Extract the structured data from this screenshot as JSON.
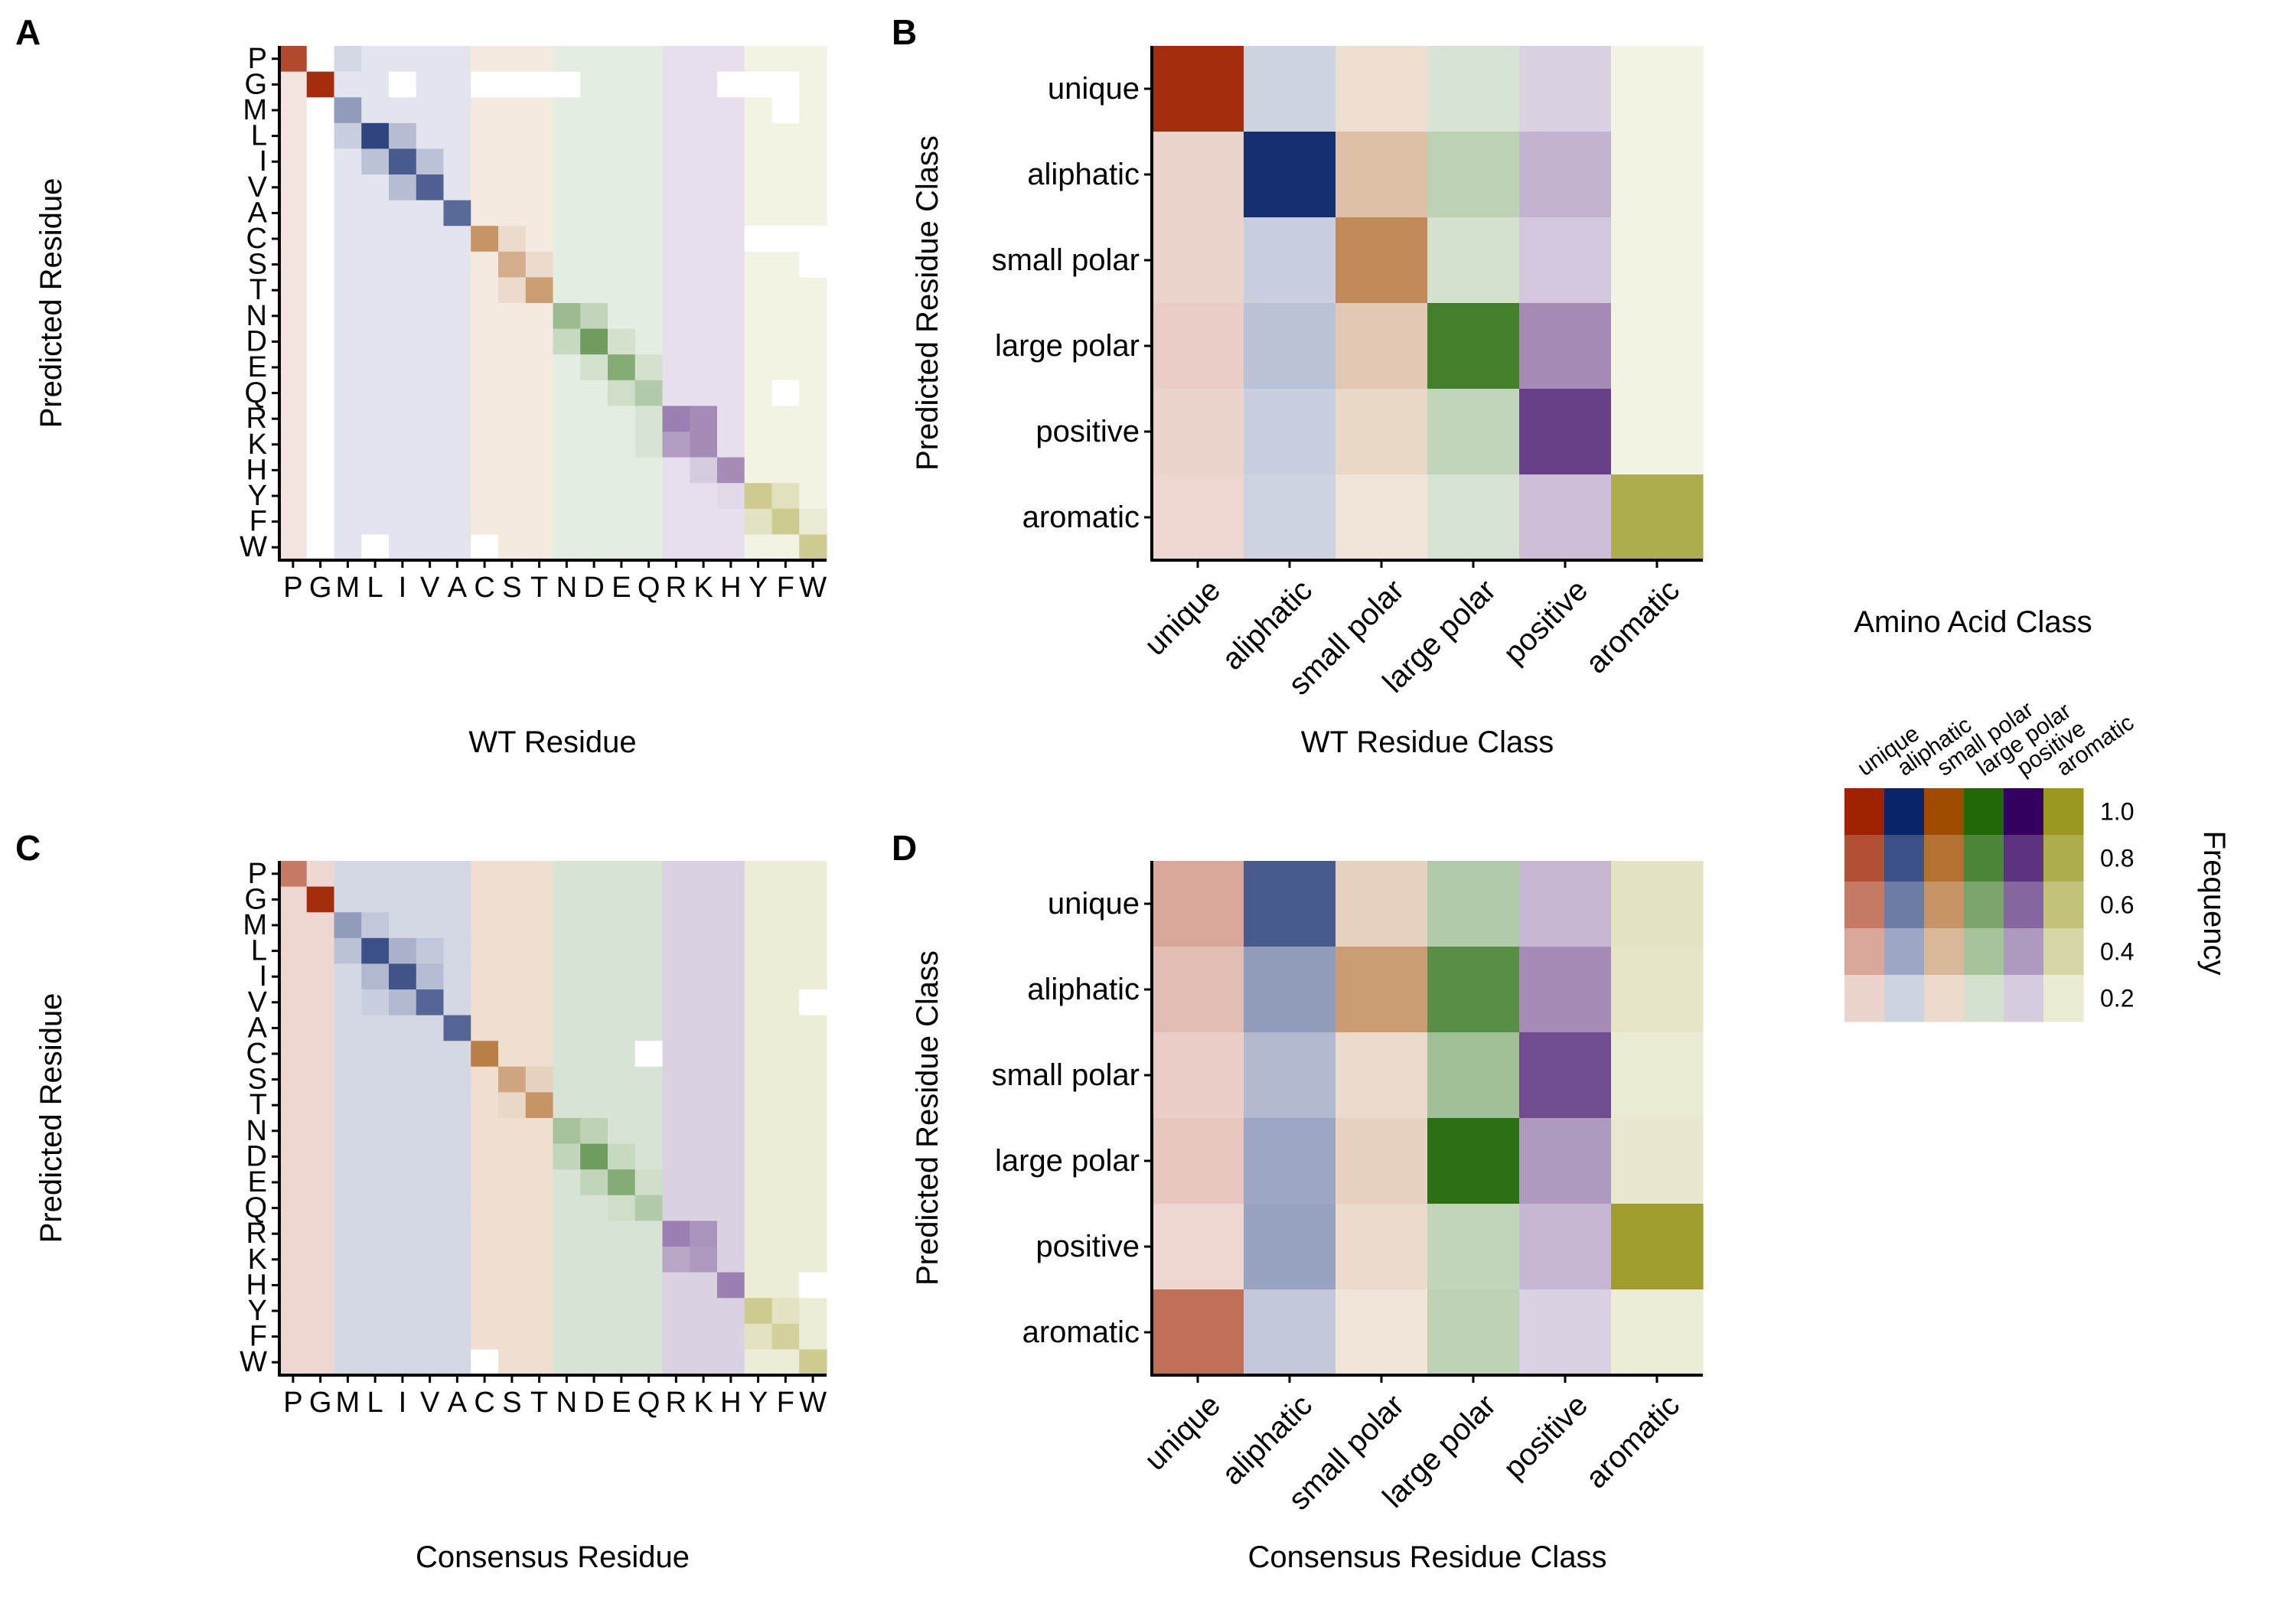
{
  "colors": {
    "unique": "#9e2200",
    "aliphatic": "#0a2468",
    "small polar": "#a04c00",
    "large polar": "#226808",
    "positive": "#340060",
    "aromatic": "#9a9820",
    "white": "#ffffff",
    "axis": "#000000"
  },
  "residue_classes": {
    "P": "unique",
    "G": "unique",
    "M": "aliphatic",
    "L": "aliphatic",
    "I": "aliphatic",
    "V": "aliphatic",
    "A": "aliphatic",
    "C": "small polar",
    "S": "small polar",
    "T": "small polar",
    "N": "large polar",
    "D": "large polar",
    "E": "large polar",
    "Q": "large polar",
    "R": "positive",
    "K": "positive",
    "H": "positive",
    "Y": "aromatic",
    "F": "aromatic",
    "W": "aromatic"
  },
  "legend": {
    "title": "Amino Acid Class",
    "classes": [
      "unique",
      "aliphatic",
      "small polar",
      "large polar",
      "positive",
      "aromatic"
    ],
    "levels": [
      1.0,
      0.8,
      0.6,
      0.4,
      0.2
    ],
    "level_labels": [
      "1.0",
      "0.8",
      "0.6",
      "0.4",
      "0.2"
    ],
    "fill_label": "Frequency"
  },
  "chart_data": [
    {
      "panel": "A",
      "type": "heatmap",
      "xlabel": "WT Residue",
      "ylabel": "Predicted Residue",
      "x": [
        "P",
        "G",
        "M",
        "L",
        "I",
        "V",
        "A",
        "C",
        "S",
        "T",
        "N",
        "D",
        "E",
        "Q",
        "R",
        "K",
        "H",
        "Y",
        "F",
        "W"
      ],
      "y": [
        "P",
        "G",
        "M",
        "L",
        "I",
        "V",
        "A",
        "C",
        "S",
        "T",
        "N",
        "D",
        "E",
        "Q",
        "R",
        "K",
        "H",
        "Y",
        "F",
        "W"
      ],
      "base": 0.12,
      "diagonal": [
        0.82,
        0.95,
        0.45,
        0.85,
        0.75,
        0.72,
        0.68,
        0.6,
        0.45,
        0.55,
        0.45,
        0.65,
        0.55,
        0.35,
        0.5,
        0.45,
        0.45,
        0.5,
        0.5,
        0.5
      ],
      "off_diagonal": [
        [
          "P",
          "M",
          0.18
        ],
        [
          "L",
          "I",
          0.3
        ],
        [
          "I",
          "L",
          0.28
        ],
        [
          "V",
          "I",
          0.3
        ],
        [
          "I",
          "V",
          0.28
        ],
        [
          "L",
          "M",
          0.22
        ],
        [
          "S",
          "T",
          0.2
        ],
        [
          "T",
          "S",
          0.2
        ],
        [
          "C",
          "S",
          0.2
        ],
        [
          "N",
          "D",
          0.28
        ],
        [
          "D",
          "N",
          0.25
        ],
        [
          "E",
          "D",
          0.2
        ],
        [
          "D",
          "E",
          0.2
        ],
        [
          "Q",
          "E",
          0.22
        ],
        [
          "E",
          "Q",
          0.2
        ],
        [
          "R",
          "K",
          0.45
        ],
        [
          "K",
          "R",
          0.38
        ],
        [
          "R",
          "Q",
          0.18
        ],
        [
          "K",
          "Q",
          0.18
        ],
        [
          "Y",
          "F",
          0.3
        ],
        [
          "F",
          "Y",
          0.28
        ],
        [
          "H",
          "K",
          0.2
        ],
        [
          "F",
          "W",
          0.2
        ],
        [
          "Y",
          "H",
          0.15
        ]
      ],
      "blank_cells": [
        [
          "P",
          "G"
        ],
        [
          "G",
          "I"
        ],
        [
          "G",
          "C"
        ],
        [
          "G",
          "S"
        ],
        [
          "G",
          "T"
        ],
        [
          "G",
          "N"
        ],
        [
          "G",
          "H"
        ],
        [
          "G",
          "Y"
        ],
        [
          "G",
          "F"
        ],
        [
          "M",
          "G"
        ],
        [
          "M",
          "F"
        ],
        [
          "L",
          "G"
        ],
        [
          "I",
          "G"
        ],
        [
          "V",
          "G"
        ],
        [
          "A",
          "G"
        ],
        [
          "C",
          "G"
        ],
        [
          "C",
          "Y"
        ],
        [
          "C",
          "F"
        ],
        [
          "C",
          "W"
        ],
        [
          "S",
          "G"
        ],
        [
          "S",
          "W"
        ],
        [
          "T",
          "G"
        ],
        [
          "N",
          "G"
        ],
        [
          "D",
          "G"
        ],
        [
          "E",
          "G"
        ],
        [
          "Q",
          "G"
        ],
        [
          "Q",
          "F"
        ],
        [
          "R",
          "G"
        ],
        [
          "K",
          "G"
        ],
        [
          "H",
          "G"
        ],
        [
          "Y",
          "G"
        ],
        [
          "F",
          "G"
        ],
        [
          "W",
          "G"
        ],
        [
          "W",
          "L"
        ],
        [
          "W",
          "C"
        ]
      ]
    },
    {
      "panel": "B",
      "type": "heatmap",
      "xlabel": "WT Residue Class",
      "ylabel": "Predicted Residue Class",
      "x": [
        "unique",
        "aliphatic",
        "small polar",
        "large polar",
        "positive",
        "aromatic"
      ],
      "y": [
        "unique",
        "aliphatic",
        "small polar",
        "large polar",
        "positive",
        "aromatic"
      ],
      "values": [
        [
          0.95,
          0.2,
          0.18,
          0.18,
          0.18,
          0.12
        ],
        [
          0.2,
          0.95,
          0.35,
          0.3,
          0.3,
          0.12
        ],
        [
          0.2,
          0.22,
          0.65,
          0.2,
          0.22,
          0.12
        ],
        [
          0.22,
          0.28,
          0.3,
          0.85,
          0.45,
          0.12
        ],
        [
          0.2,
          0.22,
          0.22,
          0.28,
          0.75,
          0.12
        ],
        [
          0.18,
          0.2,
          0.15,
          0.18,
          0.25,
          0.8
        ]
      ]
    },
    {
      "panel": "C",
      "type": "heatmap",
      "xlabel": "Consensus Residue",
      "ylabel": "Predicted Residue",
      "x": [
        "P",
        "G",
        "M",
        "L",
        "I",
        "V",
        "A",
        "C",
        "S",
        "T",
        "N",
        "D",
        "E",
        "Q",
        "R",
        "K",
        "H",
        "Y",
        "F",
        "W"
      ],
      "y": [
        "P",
        "G",
        "M",
        "L",
        "I",
        "V",
        "A",
        "C",
        "S",
        "T",
        "N",
        "D",
        "E",
        "Q",
        "R",
        "K",
        "H",
        "Y",
        "F",
        "W"
      ],
      "base": 0.18,
      "diagonal": [
        0.6,
        0.95,
        0.45,
        0.8,
        0.78,
        0.7,
        0.7,
        0.72,
        0.5,
        0.6,
        0.4,
        0.65,
        0.55,
        0.35,
        0.5,
        0.4,
        0.5,
        0.5,
        0.45,
        0.5
      ],
      "off_diagonal": [
        [
          "L",
          "I",
          0.35
        ],
        [
          "I",
          "L",
          0.32
        ],
        [
          "V",
          "I",
          0.32
        ],
        [
          "I",
          "V",
          0.3
        ],
        [
          "L",
          "M",
          0.28
        ],
        [
          "M",
          "L",
          0.25
        ],
        [
          "L",
          "V",
          0.25
        ],
        [
          "V",
          "L",
          0.22
        ],
        [
          "S",
          "T",
          0.25
        ],
        [
          "T",
          "S",
          0.22
        ],
        [
          "N",
          "D",
          0.3
        ],
        [
          "D",
          "N",
          0.28
        ],
        [
          "E",
          "D",
          0.28
        ],
        [
          "D",
          "E",
          0.25
        ],
        [
          "E",
          "Q",
          0.22
        ],
        [
          "Q",
          "E",
          0.22
        ],
        [
          "R",
          "K",
          0.42
        ],
        [
          "K",
          "R",
          0.35
        ],
        [
          "Y",
          "F",
          0.28
        ],
        [
          "F",
          "Y",
          0.28
        ],
        [
          "H",
          "Y",
          0.18
        ],
        [
          "P",
          "G",
          0.18
        ]
      ],
      "blank_cells": [
        [
          "C",
          "Q"
        ],
        [
          "V",
          "W"
        ],
        [
          "H",
          "W"
        ],
        [
          "W",
          "C"
        ]
      ]
    },
    {
      "panel": "D",
      "type": "heatmap",
      "xlabel": "Consensus Residue Class",
      "ylabel": "Predicted Residue Class",
      "x": [
        "unique",
        "aliphatic",
        "small polar",
        "large polar",
        "positive",
        "aromatic"
      ],
      "y": [
        "unique",
        "aliphatic",
        "small polar",
        "large polar",
        "positive",
        "aromatic"
      ],
      "values": [
        [
          0.4,
          0.75,
          0.25,
          0.35,
          0.28,
          0.28
        ],
        [
          0.3,
          0.45,
          0.55,
          0.75,
          0.45,
          0.25
        ],
        [
          0.22,
          0.32,
          0.2,
          0.42,
          0.7,
          0.2
        ],
        [
          0.25,
          0.4,
          0.25,
          0.95,
          0.4,
          0.22
        ],
        [
          0.18,
          0.42,
          0.2,
          0.28,
          0.28,
          0.95
        ],
        [
          0.65,
          0.25,
          0.15,
          0.3,
          0.18,
          0.18
        ]
      ]
    }
  ]
}
